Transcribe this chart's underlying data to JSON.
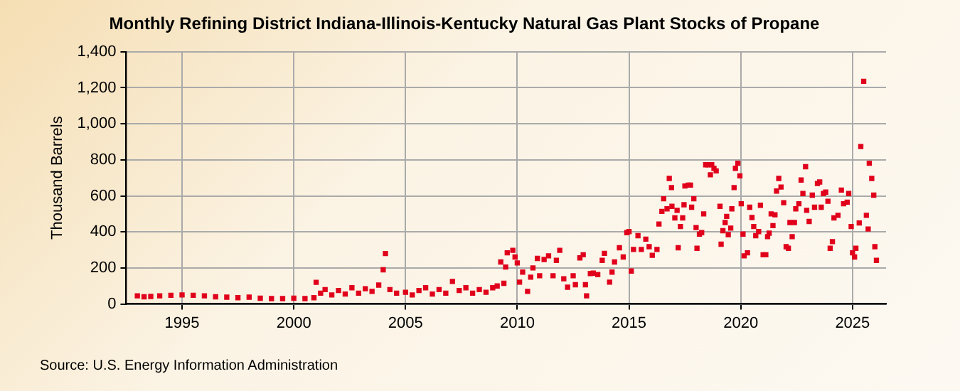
{
  "chart_data": {
    "type": "scatter",
    "title": "Monthly Refining District Indiana-Illinois-Kentucky Natural Gas Plant Stocks of Propane",
    "ylabel": "Thousand Barrels",
    "annotations": [
      "Source: U.S. Energy Information Administration"
    ],
    "x": [
      1993.0,
      1993.3,
      1993.6,
      1994.0,
      1994.5,
      1995.0,
      1995.5,
      1996.0,
      1996.5,
      1997.0,
      1997.5,
      1998.0,
      1998.5,
      1999.0,
      1999.5,
      2000.0,
      2000.5,
      2000.9,
      2001.0,
      2001.2,
      2001.4,
      2001.7,
      2002.0,
      2002.3,
      2002.6,
      2002.9,
      2003.2,
      2003.5,
      2003.8,
      2004.0,
      2004.1,
      2004.3,
      2004.6,
      2005.0,
      2005.3,
      2005.6,
      2005.9,
      2006.2,
      2006.5,
      2006.8,
      2007.1,
      2007.4,
      2007.7,
      2008.0,
      2008.3,
      2008.6,
      2008.9,
      2009.1,
      2009.26,
      2009.4,
      2009.48,
      2009.55,
      2009.8,
      2009.9,
      2010.0,
      2010.1,
      2010.24,
      2010.46,
      2010.6,
      2010.7,
      2010.9,
      2011.0,
      2011.2,
      2011.4,
      2011.6,
      2011.75,
      2011.9,
      2012.08,
      2012.25,
      2012.5,
      2012.6,
      2012.8,
      2012.95,
      2013.05,
      2013.1,
      2013.27,
      2013.4,
      2013.6,
      2013.8,
      2013.9,
      2014.13,
      2014.24,
      2014.35,
      2014.57,
      2014.74,
      2014.9,
      2015.0,
      2015.1,
      2015.2,
      2015.4,
      2015.55,
      2015.75,
      2015.9,
      2016.04,
      2016.25,
      2016.34,
      2016.47,
      2016.55,
      2016.7,
      2016.8,
      2016.9,
      2016.92,
      2017.05,
      2017.15,
      2017.2,
      2017.3,
      2017.4,
      2017.46,
      2017.5,
      2017.65,
      2017.75,
      2017.8,
      2017.9,
      2018.0,
      2018.04,
      2018.15,
      2018.25,
      2018.34,
      2018.43,
      2018.53,
      2018.64,
      2018.7,
      2018.8,
      2018.9,
      2019.07,
      2019.12,
      2019.2,
      2019.3,
      2019.37,
      2019.44,
      2019.55,
      2019.6,
      2019.7,
      2019.76,
      2019.87,
      2019.96,
      2020.02,
      2020.1,
      2020.15,
      2020.3,
      2020.4,
      2020.5,
      2020.58,
      2020.67,
      2020.8,
      2020.88,
      2021.0,
      2021.12,
      2021.2,
      2021.27,
      2021.36,
      2021.44,
      2021.53,
      2021.6,
      2021.7,
      2021.8,
      2021.92,
      2022.03,
      2022.13,
      2022.2,
      2022.3,
      2022.4,
      2022.46,
      2022.6,
      2022.7,
      2022.78,
      2022.9,
      2022.95,
      2023.06,
      2023.2,
      2023.3,
      2023.43,
      2023.53,
      2023.6,
      2023.7,
      2023.8,
      2023.9,
      2024.0,
      2024.1,
      2024.17,
      2024.35,
      2024.5,
      2024.6,
      2024.76,
      2024.83,
      2024.94,
      2025.0,
      2025.09,
      2025.15,
      2025.3,
      2025.37,
      2025.5,
      2025.62,
      2025.7,
      2025.75,
      2025.86,
      2025.95,
      2026.0,
      2026.07
    ],
    "series": [
      {
        "color": "#e0001b",
        "values": [
          45,
          40,
          42,
          45,
          48,
          50,
          48,
          45,
          40,
          38,
          35,
          38,
          32,
          30,
          30,
          32,
          30,
          35,
          120,
          60,
          80,
          50,
          75,
          55,
          90,
          60,
          85,
          70,
          105,
          190,
          280,
          80,
          60,
          65,
          50,
          75,
          90,
          55,
          80,
          60,
          125,
          75,
          90,
          60,
          80,
          65,
          90,
          100,
          233,
          115,
          205,
          284,
          298,
          261,
          228,
          121,
          177,
          70,
          149,
          200,
          253,
          157,
          247,
          267,
          157,
          242,
          298,
          140,
          93,
          157,
          107,
          256,
          273,
          107,
          45,
          169,
          171,
          163,
          242,
          281,
          121,
          177,
          233,
          312,
          261,
          396,
          402,
          183,
          303,
          379,
          303,
          360,
          318,
          270,
          303,
          444,
          514,
          584,
          528,
          697,
          646,
          542,
          478,
          520,
          312,
          430,
          478,
          551,
          655,
          660,
          660,
          537,
          584,
          424,
          309,
          388,
          396,
          500,
          773,
          773,
          717,
          773,
          753,
          739,
          542,
          332,
          407,
          452,
          486,
          385,
          421,
          528,
          646,
          753,
          781,
          711,
          556,
          388,
          267,
          284,
          537,
          480,
          430,
          379,
          402,
          548,
          273,
          273,
          374,
          393,
          500,
          435,
          495,
          627,
          697,
          649,
          562,
          318,
          309,
          452,
          374,
          452,
          528,
          556,
          688,
          613,
          762,
          520,
          458,
          604,
          537,
          669,
          677,
          537,
          613,
          621,
          570,
          309,
          346,
          478,
          492,
          632,
          556,
          565,
          613,
          430,
          284,
          261,
          309,
          450,
          874,
          1236,
          492,
          416,
          781,
          697,
          604,
          318,
          242
        ]
      }
    ],
    "xlim": [
      1992.5,
      2026.5
    ],
    "xticks": [
      1995,
      2000,
      2005,
      2010,
      2015,
      2020,
      2025
    ],
    "ylim": [
      0,
      1400
    ],
    "yticks": [
      0,
      200,
      400,
      600,
      800,
      {
        "value": 1000,
        "label": "1,000"
      },
      {
        "value": 1200,
        "label": "1,200"
      },
      {
        "value": 1400,
        "label": "1,400"
      }
    ],
    "grid": true,
    "legend": false,
    "marker": "square"
  }
}
